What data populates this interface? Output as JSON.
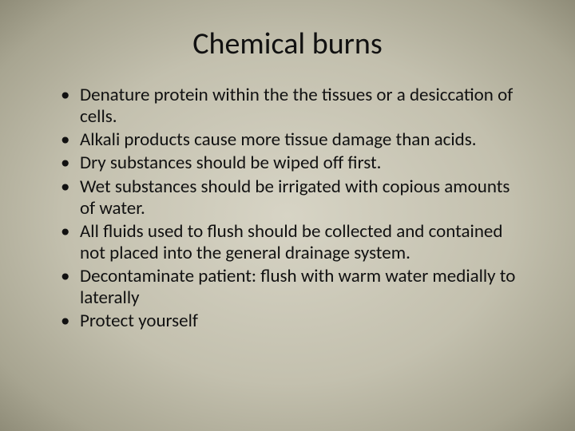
{
  "slide": {
    "title": "Chemical burns",
    "title_fontsize": 38,
    "body_fontsize": 23,
    "text_color": "#111111",
    "background_gradient": {
      "type": "radial",
      "stops": [
        "#d7d4c5",
        "#c3c0ae",
        "#a8a591",
        "#8f8c78"
      ]
    },
    "bullets": [
      "Denature protein within the the tissues or a desiccation of cells.",
      "Alkali products cause more tissue damage than acids.",
      "Dry substances should be wiped off first.",
      "Wet substances should be irrigated with copious amounts of water.",
      "All fluids used to flush should be collected and contained not placed into the general drainage system.",
      "Decontaminate patient: flush with warm water medially to laterally",
      "Protect yourself"
    ]
  }
}
